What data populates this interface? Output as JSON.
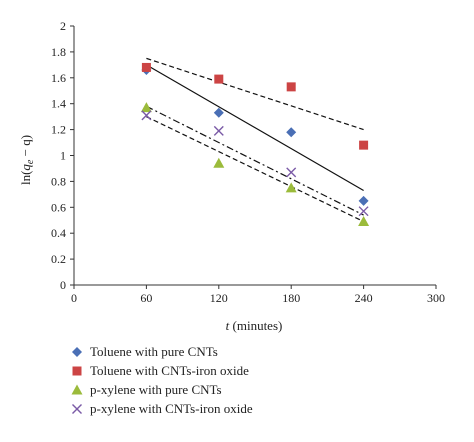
{
  "chart_data": {
    "type": "scatter",
    "xlabel_var": "t",
    "xlabel_unit": " (minutes)",
    "ylabel_prefix": "ln(",
    "ylabel_q": "q",
    "ylabel_sub": "e",
    "ylabel_suffix": " − q)",
    "xlim": [
      0,
      300
    ],
    "ylim": [
      0,
      2
    ],
    "xticks": [
      "0",
      "60",
      "120",
      "180",
      "240",
      "300"
    ],
    "yticks": [
      "0",
      "0.2",
      "0.4",
      "0.6",
      "0.8",
      "1",
      "1.2",
      "1.4",
      "1.6",
      "1.8",
      "2"
    ],
    "grid": false,
    "legend_position": "bottom",
    "series": [
      {
        "name": "Toluene with pure CNTs",
        "marker": "diamond",
        "color": "#4a6fb5",
        "x": [
          60,
          120,
          180,
          240
        ],
        "y": [
          1.66,
          1.33,
          1.18,
          0.65
        ],
        "fit": {
          "style": "solid",
          "x": [
            60,
            240
          ],
          "y": [
            1.7,
            0.73
          ]
        }
      },
      {
        "name": "Toluene with CNTs-iron oxide",
        "marker": "square",
        "color": "#cc4444",
        "x": [
          60,
          120,
          180,
          240
        ],
        "y": [
          1.68,
          1.59,
          1.53,
          1.08
        ],
        "fit": {
          "style": "dashed",
          "x": [
            60,
            240
          ],
          "y": [
            1.75,
            1.2
          ]
        }
      },
      {
        "name": "p-xylene with pure CNTs",
        "marker": "triangle",
        "color": "#9bbb3b",
        "x": [
          60,
          120,
          180,
          240
        ],
        "y": [
          1.37,
          0.94,
          0.75,
          0.49
        ],
        "fit": {
          "style": "dashed",
          "x": [
            60,
            240
          ],
          "y": [
            1.3,
            0.49
          ]
        }
      },
      {
        "name": "p-xylene with CNTs-iron oxide",
        "marker": "x",
        "color": "#7a5aa6",
        "x": [
          60,
          120,
          180,
          240
        ],
        "y": [
          1.31,
          1.19,
          0.87,
          0.57
        ],
        "fit": {
          "style": "dashdot",
          "x": [
            60,
            240
          ],
          "y": [
            1.38,
            0.54
          ]
        }
      }
    ]
  }
}
